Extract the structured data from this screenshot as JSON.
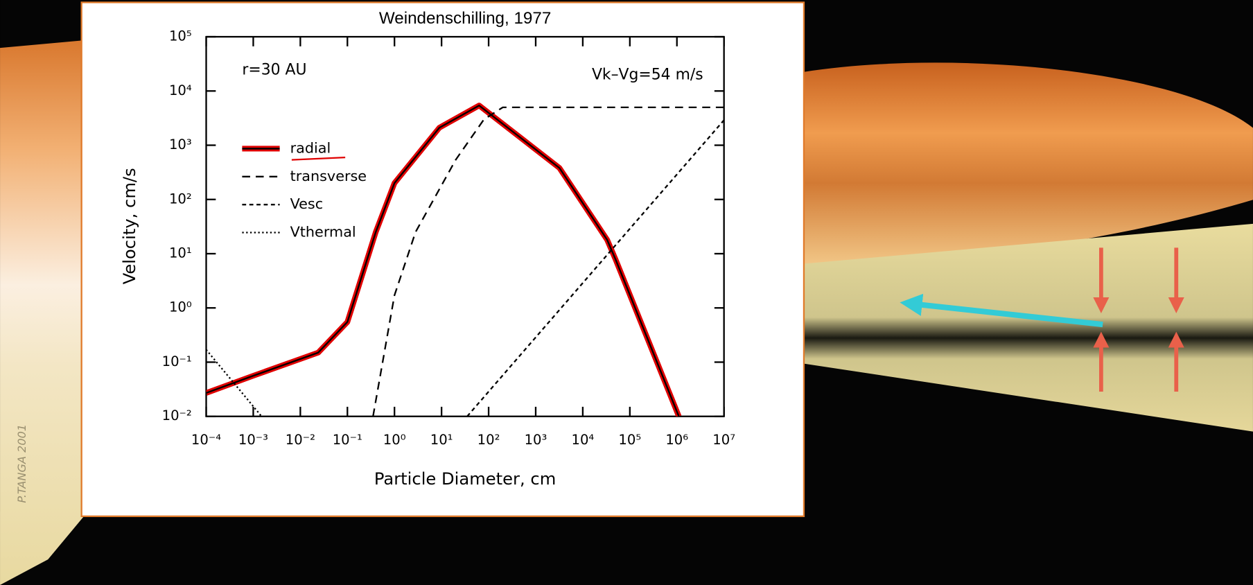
{
  "chart_data": {
    "type": "line",
    "title": "Weindenschilling, 1977",
    "xlabel": "Particle Diameter, cm",
    "ylabel": "Velocity, cm/s",
    "annotations": [
      "r=30 AU",
      "Vk–Vg=54 m/s"
    ],
    "watermark": "P.TANGA 2001",
    "xscale": "log",
    "yscale": "log",
    "xlim": [
      0.0001,
      10000000
    ],
    "ylim": [
      0.01,
      100000
    ],
    "xticks": [
      {
        "value": 0.0001,
        "label": "10⁻⁴"
      },
      {
        "value": 0.001,
        "label": "10⁻³"
      },
      {
        "value": 0.01,
        "label": "10⁻²"
      },
      {
        "value": 0.1,
        "label": "10⁻¹"
      },
      {
        "value": 1,
        "label": "10⁰"
      },
      {
        "value": 10,
        "label": "10¹"
      },
      {
        "value": 100,
        "label": "10²"
      },
      {
        "value": 1000,
        "label": "10³"
      },
      {
        "value": 10000,
        "label": "10⁴"
      },
      {
        "value": 100000,
        "label": "10⁵"
      },
      {
        "value": 1000000,
        "label": "10⁶"
      },
      {
        "value": 10000000,
        "label": "10⁷"
      }
    ],
    "yticks": [
      {
        "value": 0.01,
        "label": "10⁻²"
      },
      {
        "value": 0.1,
        "label": "10⁻¹"
      },
      {
        "value": 1,
        "label": "10⁰"
      },
      {
        "value": 10,
        "label": "10¹"
      },
      {
        "value": 100,
        "label": "10²"
      },
      {
        "value": 1000,
        "label": "10³"
      },
      {
        "value": 10000,
        "label": "10⁴"
      },
      {
        "value": 100000,
        "label": "10⁵"
      }
    ],
    "grid": false,
    "legend": "left",
    "series": [
      {
        "name": "radial",
        "color": "#e00000",
        "style": "solid",
        "x": [
          0.0001,
          0.001,
          0.024,
          0.1,
          0.4,
          1,
          9,
          63,
          3200,
          33000,
          50000,
          1100000
        ],
        "values": [
          0.027,
          0.056,
          0.15,
          0.55,
          25,
          200,
          2100,
          5400,
          380,
          18,
          7.8,
          0.01
        ]
      },
      {
        "name": "transverse",
        "color": "#000000",
        "style": "dashed",
        "x": [
          0.35,
          1,
          2.8,
          20,
          80,
          200,
          10000000
        ],
        "values": [
          0.01,
          1.7,
          25,
          540,
          3000,
          5000,
          5000
        ]
      },
      {
        "name": "Vesc",
        "color": "#000000",
        "style": "short-dashed",
        "x": [
          35,
          10000000
        ],
        "values": [
          0.01,
          2900
        ]
      },
      {
        "name": "Vthermal",
        "color": "#000000",
        "style": "dotted",
        "x": [
          0.0001,
          0.0015
        ],
        "values": [
          0.17,
          0.01
        ]
      }
    ]
  }
}
